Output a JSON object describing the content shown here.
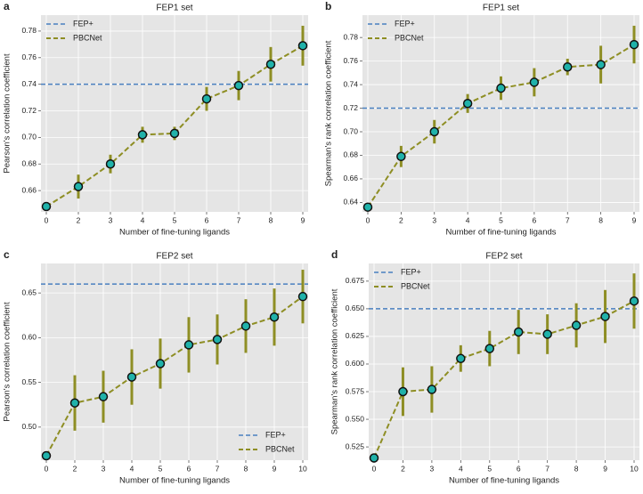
{
  "chart_data": [
    {
      "type": "line",
      "panel": "a",
      "title": "FEP1 set",
      "xlabel": "Number of fine-tuning ligands",
      "ylabel": "Pearson's correlation coefficient",
      "categories": [
        "0",
        "2",
        "3",
        "4",
        "5",
        "6",
        "7",
        "8",
        "9"
      ],
      "series": [
        {
          "name": "PBCNet",
          "color": "#8e8e24",
          "marker_color": "#20b2aa",
          "values": [
            0.648,
            0.663,
            0.68,
            0.702,
            0.703,
            0.729,
            0.739,
            0.755,
            0.769
          ],
          "errors": [
            0.001,
            0.009,
            0.007,
            0.006,
            0.005,
            0.009,
            0.011,
            0.013,
            0.015
          ]
        }
      ],
      "hlines": [
        {
          "name": "FEP+",
          "color": "#4a80c0",
          "value": 0.74
        }
      ],
      "ylim": [
        0.644,
        0.792
      ],
      "yticks": [
        {
          "value": 0.66,
          "label": "0.66"
        },
        {
          "value": 0.68,
          "label": "0.68"
        },
        {
          "value": 0.7,
          "label": "0.70"
        },
        {
          "value": 0.72,
          "label": "0.72"
        },
        {
          "value": 0.74,
          "label": "0.74"
        },
        {
          "value": 0.76,
          "label": "0.76"
        },
        {
          "value": 0.78,
          "label": "0.78"
        }
      ],
      "grid": true,
      "legend": "upper-left"
    },
    {
      "type": "line",
      "panel": "b",
      "title": "FEP1 set",
      "xlabel": "Number of fine-tuning ligands",
      "ylabel": "Spearman's rank correlation coefficient",
      "categories": [
        "0",
        "2",
        "3",
        "4",
        "5",
        "6",
        "7",
        "8",
        "9"
      ],
      "series": [
        {
          "name": "PBCNet",
          "color": "#8e8e24",
          "marker_color": "#20b2aa",
          "values": [
            0.636,
            0.679,
            0.7,
            0.724,
            0.737,
            0.742,
            0.755,
            0.757,
            0.774
          ],
          "errors": [
            0.002,
            0.009,
            0.01,
            0.008,
            0.01,
            0.012,
            0.007,
            0.016,
            0.016
          ]
        }
      ],
      "hlines": [
        {
          "name": "FEP+",
          "color": "#4a80c0",
          "value": 0.72
        }
      ],
      "ylim": [
        0.632,
        0.799
      ],
      "yticks": [
        {
          "value": 0.64,
          "label": "0.64"
        },
        {
          "value": 0.66,
          "label": "0.66"
        },
        {
          "value": 0.68,
          "label": "0.68"
        },
        {
          "value": 0.7,
          "label": "0.70"
        },
        {
          "value": 0.72,
          "label": "0.72"
        },
        {
          "value": 0.74,
          "label": "0.74"
        },
        {
          "value": 0.76,
          "label": "0.76"
        },
        {
          "value": 0.78,
          "label": "0.78"
        }
      ],
      "grid": true,
      "legend": "upper-left"
    },
    {
      "type": "line",
      "panel": "c",
      "title": "FEP2 set",
      "xlabel": "Number of fine-tuning ligands",
      "ylabel": "Pearson's correlation coefficient",
      "categories": [
        "0",
        "2",
        "3",
        "4",
        "5",
        "6",
        "7",
        "8",
        "9",
        "10"
      ],
      "series": [
        {
          "name": "PBCNet",
          "color": "#8e8e24",
          "marker_color": "#20b2aa",
          "values": [
            0.468,
            0.527,
            0.534,
            0.556,
            0.571,
            0.592,
            0.598,
            0.613,
            0.623,
            0.646
          ],
          "errors": [
            0.001,
            0.031,
            0.029,
            0.031,
            0.028,
            0.031,
            0.028,
            0.03,
            0.032,
            0.03
          ]
        }
      ],
      "hlines": [
        {
          "name": "FEP+",
          "color": "#4a80c0",
          "value": 0.66
        }
      ],
      "ylim": [
        0.463,
        0.683
      ],
      "yticks": [
        {
          "value": 0.5,
          "label": "0.50"
        },
        {
          "value": 0.55,
          "label": "0.55"
        },
        {
          "value": 0.6,
          "label": "0.60"
        },
        {
          "value": 0.65,
          "label": "0.65"
        }
      ],
      "grid": true,
      "legend": "lower-right"
    },
    {
      "type": "line",
      "panel": "d",
      "title": "FEP2 set",
      "xlabel": "Number of fine-tuning ligands",
      "ylabel": "Spearman's rank correlation coefficient",
      "categories": [
        "0",
        "2",
        "3",
        "4",
        "5",
        "6",
        "7",
        "8",
        "9",
        "10"
      ],
      "series": [
        {
          "name": "PBCNet",
          "color": "#8e8e24",
          "marker_color": "#20b2aa",
          "values": [
            0.515,
            0.575,
            0.577,
            0.605,
            0.614,
            0.629,
            0.627,
            0.635,
            0.643,
            0.657
          ],
          "errors": [
            0.001,
            0.022,
            0.021,
            0.012,
            0.016,
            0.02,
            0.018,
            0.02,
            0.024,
            0.025
          ]
        }
      ],
      "hlines": [
        {
          "name": "FEP+",
          "color": "#4a80c0",
          "value": 0.65
        }
      ],
      "ylim": [
        0.513,
        0.691
      ],
      "yticks": [
        {
          "value": 0.525,
          "label": "0.525"
        },
        {
          "value": 0.55,
          "label": "0.550"
        },
        {
          "value": 0.575,
          "label": "0.575"
        },
        {
          "value": 0.6,
          "label": "0.600"
        },
        {
          "value": 0.625,
          "label": "0.625"
        },
        {
          "value": 0.65,
          "label": "0.650"
        },
        {
          "value": 0.675,
          "label": "0.675"
        }
      ],
      "grid": true,
      "legend": "upper-left"
    }
  ]
}
